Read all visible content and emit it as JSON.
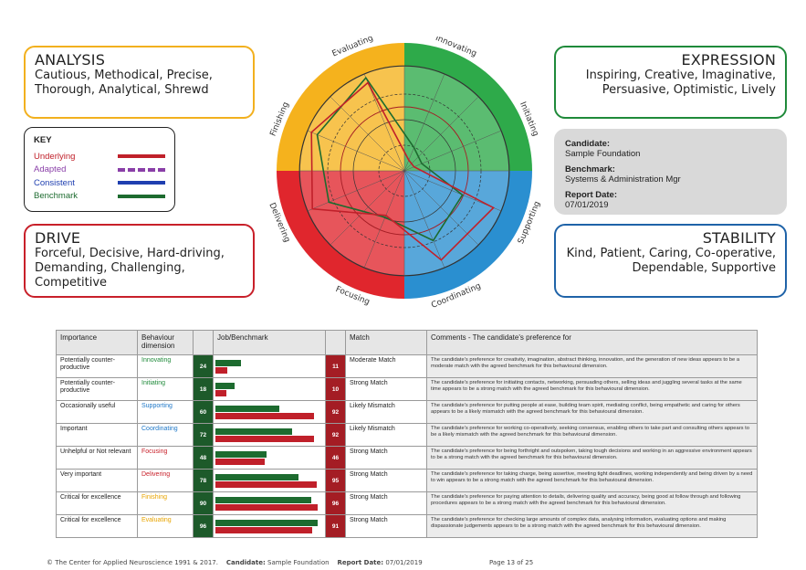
{
  "panels": {
    "analysis": {
      "title": "ANALYSIS",
      "text": "Cautious, Methodical, Precise, Thorough, Analytical, Shrewd",
      "color": "#f2b01e"
    },
    "drive": {
      "title": "DRIVE",
      "text": "Forceful, Decisive, Hard-driving, Demanding, Challenging, Competitive",
      "color": "#c8202a"
    },
    "expression": {
      "title": "EXPRESSION",
      "text": "Inspiring, Creative, Imaginative, Persuasive, Optimistic, Lively",
      "color": "#1f8a3a"
    },
    "stability": {
      "title": "STABILITY",
      "text": "Kind, Patient, Caring, Co-operative, Dependable, Supportive",
      "color": "#1f63a8"
    }
  },
  "key": {
    "title": "KEY",
    "items": [
      {
        "label": "Underlying",
        "color": "#c0202a",
        "style": "solid"
      },
      {
        "label": "Adapted",
        "color": "#8a3fa8",
        "style": "dashed"
      },
      {
        "label": "Consistent",
        "color": "#1f3fb0",
        "style": "solid"
      },
      {
        "label": "Benchmark",
        "color": "#1d6b2f",
        "style": "solid"
      }
    ]
  },
  "candidate_card": {
    "candidate_label": "Candidate:",
    "candidate_value": "Sample Foundation",
    "benchmark_label": "Benchmark:",
    "benchmark_value": "Systems & Administration Mgr",
    "date_label": "Report Date:",
    "date_value": "07/01/2019"
  },
  "chart_data": {
    "type": "radar",
    "axes": [
      "Evaluating",
      "Innovating",
      "Initiating",
      "Supporting",
      "Coordinating",
      "Focusing",
      "Delivering",
      "Finishing"
    ],
    "quadrant_colors": {
      "top_left": "#f5b21d",
      "top_right": "#2eaa4a",
      "bottom_right": "#2a8fd0",
      "bottom_left": "#e0262d"
    },
    "rlim": [
      0,
      100
    ],
    "series": [
      {
        "name": "Benchmark",
        "color": "#1d6b2f",
        "values": [
          96,
          24,
          18,
          60,
          72,
          48,
          78,
          90
        ]
      },
      {
        "name": "Underlying",
        "color": "#c0202a",
        "values": [
          91,
          11,
          10,
          92,
          92,
          46,
          95,
          96
        ]
      }
    ]
  },
  "table": {
    "headers": {
      "importance": "Importance",
      "dimension": "Behaviour dimension",
      "job": "Job/Benchmark",
      "match": "Match",
      "comments": "Comments - The candidate's preference for"
    },
    "rows": [
      {
        "importance": "Potentially counter-productive",
        "dimension": "Innovating",
        "dim_color": "#1f8a3a",
        "job": 24,
        "cand": 11,
        "match": "Moderate Match",
        "comment": "The candidate's preference for creativity, imagination, abstract thinking, innovation, and the generation of new ideas appears to be a moderate match with the agreed benchmark for this behavioural dimension."
      },
      {
        "importance": "Potentially counter-productive",
        "dimension": "Initiating",
        "dim_color": "#1f8a3a",
        "job": 18,
        "cand": 10,
        "match": "Strong Match",
        "comment": "The candidate's preference for initiating contacts, networking, persuading others, selling ideas and juggling several tasks at the same time appears to be a strong match with the agreed benchmark for this behavioural dimension."
      },
      {
        "importance": "Occasionally useful",
        "dimension": "Supporting",
        "dim_color": "#1f78c8",
        "job": 60,
        "cand": 92,
        "match": "Likely Mismatch",
        "comment": "The candidate's preference for putting people at ease, building team spirit, mediating conflict, being empathetic and caring for others appears to be a likely mismatch with the agreed benchmark for this behavioural dimension."
      },
      {
        "importance": "Important",
        "dimension": "Coordinating",
        "dim_color": "#1f78c8",
        "job": 72,
        "cand": 92,
        "match": "Likely Mismatch",
        "comment": "The candidate's preference for working co-operatively, seeking consensus, enabling others to take part and consulting others appears to be a likely mismatch with the agreed benchmark for this behavioural dimension."
      },
      {
        "importance": "Unhelpful or Not relevant",
        "dimension": "Focusing",
        "dim_color": "#c8202a",
        "job": 48,
        "cand": 46,
        "match": "Strong Match",
        "comment": "The candidate's preference for being forthright and outspoken, taking tough decisions and working in an aggressive environment appears to be a strong match with the agreed benchmark for this behavioural dimension."
      },
      {
        "importance": "Very important",
        "dimension": "Delivering",
        "dim_color": "#c8202a",
        "job": 78,
        "cand": 95,
        "match": "Strong Match",
        "comment": "The candidate's preference for taking charge, being assertive, meeting tight deadlines, working independently and being driven by a need to win appears to be a strong match with the agreed benchmark for this behavioural dimension."
      },
      {
        "importance": "Critical for excellence",
        "dimension": "Finishing",
        "dim_color": "#e8a400",
        "job": 90,
        "cand": 96,
        "match": "Strong Match",
        "comment": "The candidate's preference for paying attention to details, delivering quality and accuracy, being good at follow through and following procedures appears to be a strong match with the agreed benchmark for this behavioural dimension."
      },
      {
        "importance": "Critical for excellence",
        "dimension": "Evaluating",
        "dim_color": "#e8a400",
        "job": 96,
        "cand": 91,
        "match": "Strong Match",
        "comment": "The candidate's preference for checking large amounts of complex data, analysing information, evaluating options and making dispassionate judgements appears to be a strong match with the agreed benchmark for this behavioural dimension."
      }
    ]
  },
  "footer": {
    "copyright": "© The Center for Applied Neuroscience 1991 & 2017.",
    "candidate_label": "Candidate:",
    "candidate_value": "Sample Foundation",
    "date_label": "Report Date:",
    "date_value": "07/01/2019",
    "page": "Page 13 of 25"
  }
}
